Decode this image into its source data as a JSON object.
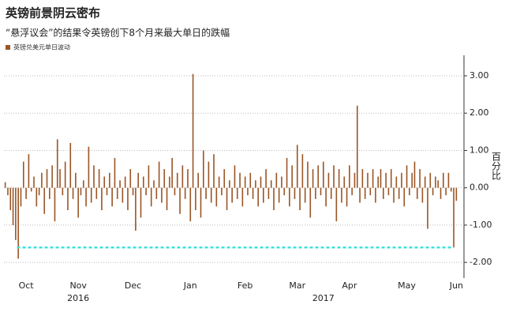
{
  "chart_data": {
    "type": "bar",
    "title": "英镑前景阴云密布",
    "subtitle": "“悬浮议会”的结果令英镑创下8个月来最大单日的跌幅",
    "y_label": "百分比",
    "years": [
      "2016",
      "2017"
    ],
    "categories": [
      null,
      null,
      null,
      null,
      null,
      null,
      null,
      null,
      "Oct",
      null,
      null,
      null,
      null,
      null,
      null,
      null,
      null,
      null,
      null,
      null,
      null,
      null,
      null,
      null,
      null,
      null,
      null,
      null,
      "Nov",
      null,
      null,
      null,
      null,
      null,
      null,
      null,
      null,
      null,
      null,
      null,
      null,
      null,
      null,
      null,
      null,
      null,
      null,
      null,
      null,
      "Dec",
      null,
      null,
      null,
      null,
      null,
      null,
      null,
      null,
      null,
      null,
      null,
      null,
      null,
      null,
      null,
      null,
      null,
      null,
      null,
      null,
      null,
      "Jan",
      null,
      null,
      null,
      null,
      null,
      null,
      null,
      null,
      null,
      null,
      null,
      null,
      null,
      null,
      null,
      null,
      null,
      null,
      null,
      null,
      "Feb",
      null,
      null,
      null,
      null,
      null,
      null,
      null,
      null,
      null,
      null,
      null,
      null,
      null,
      null,
      null,
      null,
      null,
      null,
      null,
      "Mar",
      null,
      null,
      null,
      null,
      null,
      null,
      null,
      null,
      null,
      null,
      null,
      null,
      null,
      null,
      null,
      null,
      null,
      null,
      null,
      "Apr",
      null,
      null,
      null,
      null,
      null,
      null,
      null,
      null,
      null,
      null,
      null,
      null,
      null,
      null,
      null,
      null,
      null,
      null,
      null,
      null,
      null,
      "May",
      null,
      null,
      null,
      null,
      null,
      null,
      null,
      null,
      null,
      null,
      null,
      null,
      null,
      null,
      null,
      null,
      null,
      null,
      "Jun"
    ],
    "series": [
      {
        "name": "英镑兑美元单日波动",
        "color": "#9a5526",
        "values": [
          0.15,
          -0.2,
          -0.6,
          -1.0,
          -1.4,
          -1.9,
          -0.5,
          0.7,
          -0.3,
          0.9,
          -0.1,
          0.3,
          -0.5,
          -0.2,
          0.4,
          -0.7,
          0.5,
          -0.3,
          0.6,
          -0.9,
          1.3,
          0.5,
          -0.2,
          0.7,
          -0.6,
          1.2,
          -0.3,
          0.4,
          -0.8,
          -0.2,
          0.2,
          -0.5,
          1.1,
          -0.4,
          0.6,
          -0.3,
          0.5,
          -0.6,
          0.3,
          -0.2,
          0.4,
          -0.5,
          0.8,
          -0.3,
          0.2,
          -0.4,
          0.3,
          -0.6,
          0.5,
          -0.2,
          -1.15,
          0.4,
          -0.8,
          0.3,
          -0.2,
          0.6,
          -0.5,
          0.2,
          -0.3,
          0.7,
          -0.4,
          0.5,
          -0.6,
          0.3,
          0.8,
          -0.2,
          0.4,
          -0.7,
          0.6,
          -0.3,
          0.5,
          -0.9,
          3.05,
          -0.6,
          0.4,
          -0.8,
          1.0,
          -0.3,
          0.7,
          -0.4,
          0.9,
          -0.5,
          0.3,
          -0.2,
          0.5,
          -0.6,
          0.2,
          -0.4,
          0.6,
          -0.3,
          0.4,
          -0.5,
          0.3,
          -0.2,
          0.4,
          -0.3,
          0.2,
          -0.5,
          0.3,
          -0.4,
          0.5,
          -0.3,
          0.2,
          -0.6,
          0.4,
          -0.4,
          0.3,
          -0.2,
          0.8,
          -0.5,
          0.6,
          -0.3,
          1.15,
          -0.6,
          0.9,
          -0.4,
          0.7,
          -0.8,
          0.5,
          -0.3,
          0.6,
          -0.2,
          0.7,
          -0.5,
          0.4,
          -0.3,
          0.6,
          -0.9,
          0.5,
          -0.4,
          0.3,
          -0.5,
          0.6,
          -0.2,
          0.4,
          2.2,
          -0.4,
          0.5,
          -0.3,
          0.4,
          -0.2,
          0.5,
          -0.4,
          0.3,
          0.5,
          -0.3,
          0.4,
          -0.2,
          0.5,
          -0.4,
          0.3,
          -0.3,
          0.4,
          -0.5,
          0.6,
          -0.2,
          0.4,
          0.7,
          -0.3,
          0.5,
          -0.4,
          0.3,
          -1.1,
          0.4,
          -0.2,
          0.3,
          0.2,
          -0.3,
          0.4,
          -0.2,
          0.4,
          -0.1,
          -1.6,
          -0.35
        ]
      }
    ],
    "reference_line": {
      "value": -1.6,
      "color": "#3fe3da"
    },
    "ylim": [
      -2.42,
      3.55
    ],
    "yticks": [
      {
        "value": -2,
        "label": "-2.00"
      },
      {
        "value": -1,
        "label": "-1.00"
      },
      {
        "value": 0,
        "label": "0.00"
      },
      {
        "value": 1,
        "label": "1.00"
      },
      {
        "value": 2,
        "label": "2.00"
      },
      {
        "value": 3,
        "label": "3.00"
      }
    ],
    "grid": true
  }
}
